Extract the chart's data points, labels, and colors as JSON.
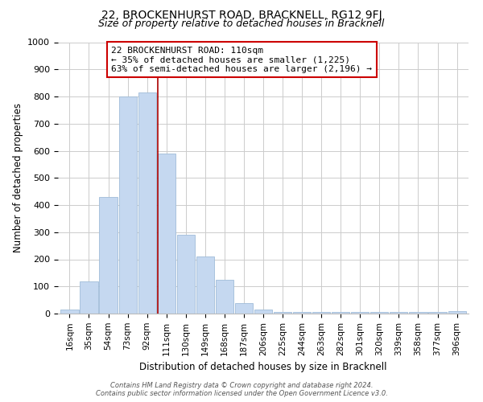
{
  "title": "22, BROCKENHURST ROAD, BRACKNELL, RG12 9FJ",
  "subtitle": "Size of property relative to detached houses in Bracknell",
  "xlabel": "Distribution of detached houses by size in Bracknell",
  "ylabel": "Number of detached properties",
  "bar_labels": [
    "16sqm",
    "35sqm",
    "54sqm",
    "73sqm",
    "92sqm",
    "111sqm",
    "130sqm",
    "149sqm",
    "168sqm",
    "187sqm",
    "206sqm",
    "225sqm",
    "244sqm",
    "263sqm",
    "282sqm",
    "301sqm",
    "320sqm",
    "339sqm",
    "358sqm",
    "377sqm",
    "396sqm"
  ],
  "bar_values": [
    15,
    120,
    430,
    800,
    815,
    590,
    290,
    210,
    125,
    40,
    15,
    5,
    5,
    5,
    5,
    5,
    5,
    5,
    5,
    5,
    10
  ],
  "bar_color": "#c5d8f0",
  "bar_edge_color": "#a0bcd8",
  "marker_line_color": "#aa0000",
  "annotation_title": "22 BROCKENHURST ROAD: 110sqm",
  "annotation_line1": "← 35% of detached houses are smaller (1,225)",
  "annotation_line2": "63% of semi-detached houses are larger (2,196) →",
  "annotation_box_facecolor": "#ffffff",
  "annotation_box_edgecolor": "#cc0000",
  "ylim": [
    0,
    1000
  ],
  "yticks": [
    0,
    100,
    200,
    300,
    400,
    500,
    600,
    700,
    800,
    900,
    1000
  ],
  "footer_line1": "Contains HM Land Registry data © Crown copyright and database right 2024.",
  "footer_line2": "Contains public sector information licensed under the Open Government Licence v3.0.",
  "background_color": "#ffffff",
  "grid_color": "#cccccc",
  "title_fontsize": 10,
  "subtitle_fontsize": 9
}
